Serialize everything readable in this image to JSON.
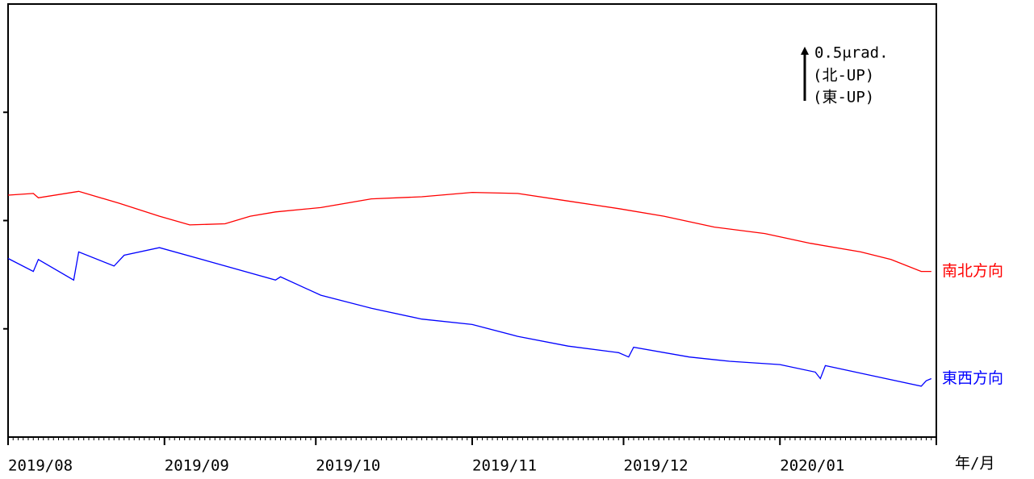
{
  "chart_data": {
    "type": "line",
    "x_label": "年/月",
    "xlim": [
      "2019-08-01",
      "2020-02-01"
    ],
    "xticks": [
      {
        "value": "2019-08-01",
        "label": "2019/08"
      },
      {
        "value": "2019-09-01",
        "label": "2019/09"
      },
      {
        "value": "2019-10-01",
        "label": "2019/10"
      },
      {
        "value": "2019-11-01",
        "label": "2019/11"
      },
      {
        "value": "2019-12-01",
        "label": "2019/12"
      },
      {
        "value": "2020-01-01",
        "label": "2020/01"
      },
      {
        "value": "2020-02-01",
        "label": null
      }
    ],
    "ylim": [
      0,
      4
    ],
    "yticks": [
      1,
      2,
      3
    ],
    "scale_bar": {
      "value": 0.5,
      "label": "0.5μrad."
    },
    "annotations": [
      "(北-UP)",
      "(東-UP)"
    ],
    "series": [
      {
        "name": "南北方向",
        "color": "#ff0000",
        "x": [
          "2019-08-01",
          "2019-08-06",
          "2019-08-07",
          "2019-08-15",
          "2019-08-23",
          "2019-08-31",
          "2019-09-06",
          "2019-09-13",
          "2019-09-18",
          "2019-09-23",
          "2019-10-02",
          "2019-10-12",
          "2019-10-22",
          "2019-11-01",
          "2019-11-10",
          "2019-11-20",
          "2019-11-30",
          "2019-12-09",
          "2019-12-19",
          "2019-12-29",
          "2020-01-07",
          "2020-01-17",
          "2020-01-23",
          "2020-01-29",
          "2020-01-31"
        ],
        "values": [
          2.235,
          2.25,
          2.21,
          2.27,
          2.16,
          2.04,
          1.96,
          1.97,
          2.04,
          2.08,
          2.12,
          2.2,
          2.22,
          2.26,
          2.25,
          2.18,
          2.11,
          2.04,
          1.94,
          1.88,
          1.79,
          1.71,
          1.64,
          1.53,
          1.53
        ]
      },
      {
        "name": "東西方向",
        "color": "#0000ff",
        "x": [
          "2019-08-01",
          "2019-08-06",
          "2019-08-07",
          "2019-08-14",
          "2019-08-15",
          "2019-08-22",
          "2019-08-24",
          "2019-08-31",
          "2019-09-10",
          "2019-09-23",
          "2019-09-24",
          "2019-10-02",
          "2019-10-12",
          "2019-10-22",
          "2019-11-01",
          "2019-11-10",
          "2019-11-20",
          "2019-11-30",
          "2019-12-02",
          "2019-12-03",
          "2019-12-14",
          "2019-12-22",
          "2020-01-01",
          "2020-01-08",
          "2020-01-09",
          "2020-01-10",
          "2020-01-19",
          "2020-01-29",
          "2020-01-30",
          "2020-01-31"
        ],
        "values": [
          1.65,
          1.53,
          1.64,
          1.45,
          1.71,
          1.58,
          1.68,
          1.75,
          1.62,
          1.45,
          1.48,
          1.31,
          1.19,
          1.09,
          1.04,
          0.93,
          0.84,
          0.78,
          0.74,
          0.83,
          0.74,
          0.7,
          0.67,
          0.6,
          0.54,
          0.66,
          0.57,
          0.47,
          0.52,
          0.54
        ]
      }
    ]
  }
}
